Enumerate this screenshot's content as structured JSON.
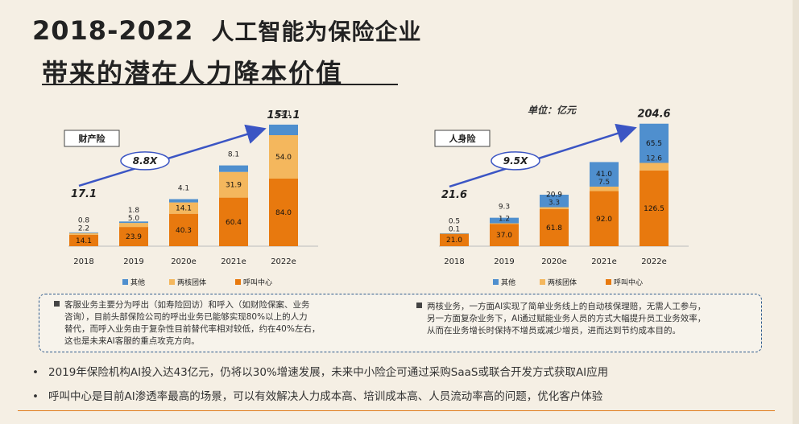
{
  "title": {
    "line1_years": "2018-2022",
    "line1_text": "人工智能为保险企业",
    "line2": "带来的潜在人力降本价值"
  },
  "unit_label": "单位：亿元",
  "colors": {
    "callcenter": "#e8790e",
    "twocore": "#f4b75d",
    "other": "#4f8fce",
    "arrow": "#3b55c4"
  },
  "chart_data": [
    {
      "type": "bar",
      "stacked": true,
      "label": "财产险",
      "categories": [
        "2018",
        "2019",
        "2020e",
        "2021e",
        "2022e"
      ],
      "series": [
        {
          "name": "呼叫中心",
          "values": [
            14.1,
            23.9,
            40.3,
            60.4,
            84.0
          ]
        },
        {
          "name": "两核团体",
          "values": [
            2.2,
            5.0,
            14.1,
            31.9,
            54.0
          ]
        },
        {
          "name": "其他",
          "values": [
            0.8,
            1.8,
            4.1,
            8.1,
            13.1
          ]
        }
      ],
      "totals": {
        "start": "17.1",
        "end": "151.1"
      },
      "growth_label": "8.8X",
      "legend": [
        "其他",
        "两核团体",
        "呼叫中心"
      ],
      "ylim": [
        0,
        160
      ]
    },
    {
      "type": "bar",
      "stacked": true,
      "label": "人身险",
      "categories": [
        "2018",
        "2019",
        "2020e",
        "2021e",
        "2022e"
      ],
      "series": [
        {
          "name": "呼叫中心",
          "values": [
            21.0,
            37.0,
            61.8,
            92.0,
            126.5
          ]
        },
        {
          "name": "两核团体",
          "values": [
            0.1,
            1.2,
            3.3,
            7.5,
            12.6
          ]
        },
        {
          "name": "其他",
          "values": [
            0.5,
            9.3,
            20.9,
            41.0,
            65.5
          ]
        }
      ],
      "totals": {
        "start": "21.6",
        "end": "204.6"
      },
      "growth_label": "9.5X",
      "legend": [
        "其他",
        "两核团体",
        "呼叫中心"
      ],
      "ylim": [
        0,
        215
      ]
    }
  ],
  "notes": [
    {
      "lines": [
        "客服业务主要分为呼出（如寿险回访）和呼入（如财险保案、业务",
        "咨询），目前头部保险公司的呼出业务已能够实现80%以上的人力",
        "替代，而呼入业务由于复杂性目前替代率相对较低，约在40%左右，",
        "这也是未来AI客服的重点攻克方向。"
      ]
    },
    {
      "lines": [
        "两核业务，一方面AI实现了简单业务线上的自动核保理赔，无需人工参与，",
        "另一方面复杂业务下，AI通过赋能业务人员的方式大幅提升员工业务效率，",
        "从而在业务增长时保持不增员或减少增员，进而达到节约成本目的。"
      ]
    }
  ],
  "bullets": [
    "2019年保险机构AI投入达43亿元，仍将以30%增速发展，未来中小险企可通过采购SaaS或联合开发方式获取AI应用",
    "呼叫中心是目前AI渗透率最高的场景，可以有效解决人力成本高、培训成本高、人员流动率高的问题，优化客户体验"
  ]
}
